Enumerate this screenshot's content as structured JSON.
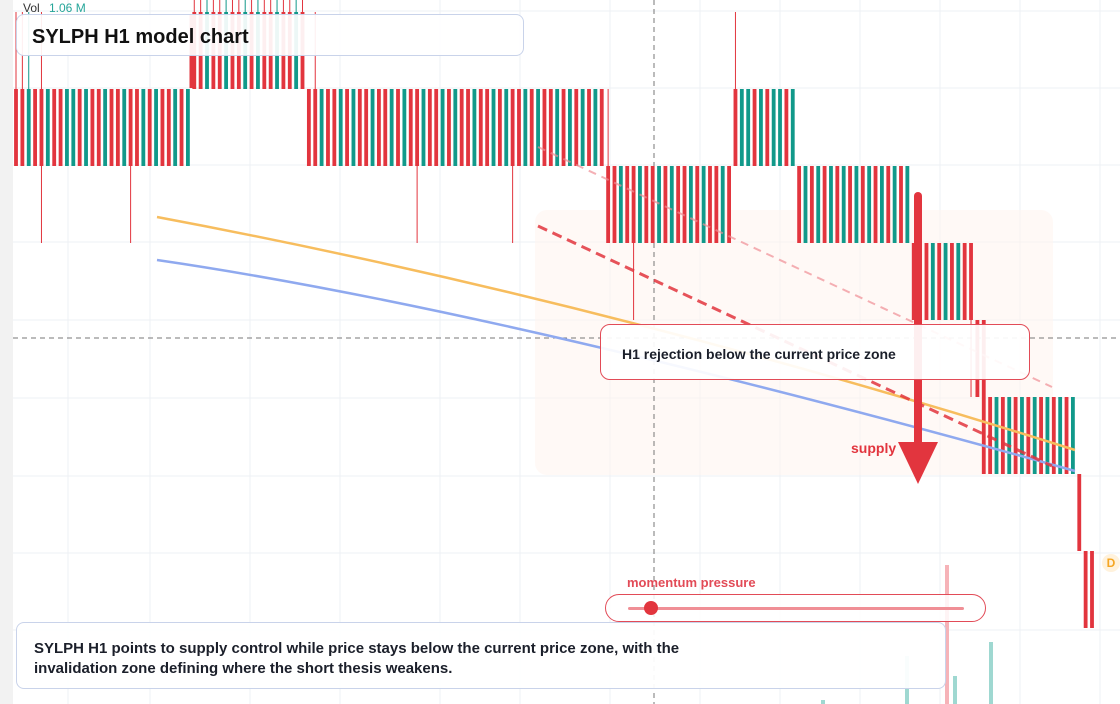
{
  "header": {
    "title": "SYLPH H1 model chart",
    "vol_label": "Vol",
    "vol_value": "1.06 M"
  },
  "annotations": {
    "callout": "H1 rejection below the current price zone",
    "supply_label": "supply",
    "momentum_label": "momentum pressure",
    "summary": "SYLPH H1 points to supply control while price stays below the current price zone, with the invalidation zone defining where the short thesis weakens.",
    "badge": "D"
  },
  "colors": {
    "bull": "#11998a",
    "bear": "#e2353e",
    "ma_fast": "#f7bd5e",
    "ma_slow": "#8fa9ef",
    "trend": "#e2353e"
  },
  "momentum": {
    "level": 0.05
  },
  "chart_data": {
    "type": "candlestick",
    "title": "SYLPH H1 model chart",
    "candles": [
      {
        "o": 2,
        "c": 1,
        "h": 3,
        "l": 1
      },
      {
        "o": 2,
        "c": 1,
        "h": 3,
        "l": 1
      },
      {
        "o": 1,
        "c": 2,
        "h": 3,
        "l": 1
      },
      {
        "o": 2,
        "c": 1,
        "h": 2,
        "l": 1
      },
      {
        "o": 2,
        "c": 1,
        "h": 3,
        "l": 0
      },
      {
        "o": 1,
        "c": 2,
        "h": 2,
        "l": 1
      },
      {
        "o": 2,
        "c": 1,
        "h": 2,
        "l": 1
      },
      {
        "o": 2,
        "c": 1,
        "h": 2,
        "l": 1
      },
      {
        "o": 1,
        "c": 2,
        "h": 2,
        "l": 1
      },
      {
        "o": 1,
        "c": 2,
        "h": 2,
        "l": 1
      },
      {
        "o": 2,
        "c": 1,
        "h": 2,
        "l": 1
      },
      {
        "o": 1,
        "c": 2,
        "h": 2,
        "l": 1
      },
      {
        "o": 2,
        "c": 1,
        "h": 2,
        "l": 1
      },
      {
        "o": 2,
        "c": 1,
        "h": 2,
        "l": 1
      },
      {
        "o": 1,
        "c": 2,
        "h": 2,
        "l": 1
      },
      {
        "o": 2,
        "c": 1,
        "h": 2,
        "l": 1
      },
      {
        "o": 2,
        "c": 1,
        "h": 2,
        "l": 1
      },
      {
        "o": 1,
        "c": 2,
        "h": 2,
        "l": 1
      },
      {
        "o": 2,
        "c": 1,
        "h": 2,
        "l": 0
      },
      {
        "o": 2,
        "c": 1,
        "h": 2,
        "l": 1
      },
      {
        "o": 1,
        "c": 2,
        "h": 2,
        "l": 1
      },
      {
        "o": 2,
        "c": 1,
        "h": 2,
        "l": 1
      },
      {
        "o": 1,
        "c": 2,
        "h": 2,
        "l": 1
      },
      {
        "o": 2,
        "c": 1,
        "h": 2,
        "l": 1
      },
      {
        "o": 2,
        "c": 1,
        "h": 2,
        "l": 1
      },
      {
        "o": 1,
        "c": 2,
        "h": 2,
        "l": 1
      },
      {
        "o": 2,
        "c": 1,
        "h": 2,
        "l": 1
      },
      {
        "o": 1,
        "c": 2,
        "h": 2,
        "l": 1
      },
      {
        "o": 3,
        "c": 2,
        "h": 4,
        "l": 2
      },
      {
        "o": 3,
        "c": 2,
        "h": 4,
        "l": 2
      },
      {
        "o": 2,
        "c": 3,
        "h": 4,
        "l": 2
      },
      {
        "o": 3,
        "c": 2,
        "h": 4,
        "l": 2
      },
      {
        "o": 3,
        "c": 2,
        "h": 4,
        "l": 2
      },
      {
        "o": 2,
        "c": 3,
        "h": 4,
        "l": 2
      },
      {
        "o": 3,
        "c": 2,
        "h": 4,
        "l": 2
      },
      {
        "o": 3,
        "c": 2,
        "h": 4,
        "l": 2
      },
      {
        "o": 2,
        "c": 3,
        "h": 4,
        "l": 2
      },
      {
        "o": 3,
        "c": 2,
        "h": 4,
        "l": 2
      },
      {
        "o": 2,
        "c": 3,
        "h": 4,
        "l": 2
      },
      {
        "o": 3,
        "c": 2,
        "h": 4,
        "l": 2
      },
      {
        "o": 3,
        "c": 2,
        "h": 4,
        "l": 2
      },
      {
        "o": 2,
        "c": 3,
        "h": 4,
        "l": 2
      },
      {
        "o": 3,
        "c": 2,
        "h": 4,
        "l": 2
      },
      {
        "o": 3,
        "c": 2,
        "h": 4,
        "l": 2
      },
      {
        "o": 2,
        "c": 3,
        "h": 4,
        "l": 2
      },
      {
        "o": 3,
        "c": 2,
        "h": 4,
        "l": 2
      },
      {
        "o": 2,
        "c": 1,
        "h": 2,
        "l": 1
      },
      {
        "o": 2,
        "c": 1,
        "h": 3,
        "l": 1
      },
      {
        "o": 1,
        "c": 2,
        "h": 2,
        "l": 1
      },
      {
        "o": 2,
        "c": 1,
        "h": 2,
        "l": 1
      },
      {
        "o": 2,
        "c": 1,
        "h": 2,
        "l": 1
      },
      {
        "o": 1,
        "c": 2,
        "h": 2,
        "l": 1
      },
      {
        "o": 2,
        "c": 1,
        "h": 2,
        "l": 1
      },
      {
        "o": 1,
        "c": 2,
        "h": 2,
        "l": 1
      },
      {
        "o": 2,
        "c": 1,
        "h": 2,
        "l": 1
      },
      {
        "o": 2,
        "c": 1,
        "h": 2,
        "l": 1
      },
      {
        "o": 1,
        "c": 2,
        "h": 2,
        "l": 1
      },
      {
        "o": 2,
        "c": 1,
        "h": 2,
        "l": 1
      },
      {
        "o": 2,
        "c": 1,
        "h": 2,
        "l": 1
      },
      {
        "o": 1,
        "c": 2,
        "h": 2,
        "l": 1
      },
      {
        "o": 2,
        "c": 1,
        "h": 2,
        "l": 1
      },
      {
        "o": 1,
        "c": 2,
        "h": 2,
        "l": 1
      },
      {
        "o": 2,
        "c": 1,
        "h": 2,
        "l": 1
      },
      {
        "o": 2,
        "c": 1,
        "h": 2,
        "l": 0
      },
      {
        "o": 1,
        "c": 2,
        "h": 2,
        "l": 1
      },
      {
        "o": 2,
        "c": 1,
        "h": 2,
        "l": 1
      },
      {
        "o": 2,
        "c": 1,
        "h": 2,
        "l": 1
      },
      {
        "o": 1,
        "c": 2,
        "h": 2,
        "l": 1
      },
      {
        "o": 2,
        "c": 1,
        "h": 2,
        "l": 1
      },
      {
        "o": 1,
        "c": 2,
        "h": 2,
        "l": 1
      },
      {
        "o": 2,
        "c": 1,
        "h": 2,
        "l": 1
      },
      {
        "o": 2,
        "c": 1,
        "h": 2,
        "l": 1
      },
      {
        "o": 1,
        "c": 2,
        "h": 2,
        "l": 1
      },
      {
        "o": 2,
        "c": 1,
        "h": 2,
        "l": 1
      },
      {
        "o": 2,
        "c": 1,
        "h": 2,
        "l": 1
      },
      {
        "o": 1,
        "c": 2,
        "h": 2,
        "l": 1
      },
      {
        "o": 2,
        "c": 1,
        "h": 2,
        "l": 1
      },
      {
        "o": 1,
        "c": 2,
        "h": 2,
        "l": 1
      },
      {
        "o": 2,
        "c": 1,
        "h": 2,
        "l": 0
      },
      {
        "o": 2,
        "c": 1,
        "h": 2,
        "l": 1
      },
      {
        "o": 1,
        "c": 2,
        "h": 2,
        "l": 1
      },
      {
        "o": 2,
        "c": 1,
        "h": 2,
        "l": 1
      },
      {
        "o": 1,
        "c": 2,
        "h": 2,
        "l": 1
      },
      {
        "o": 2,
        "c": 1,
        "h": 2,
        "l": 1
      },
      {
        "o": 2,
        "c": 1,
        "h": 2,
        "l": 1
      },
      {
        "o": 1,
        "c": 2,
        "h": 2,
        "l": 1
      },
      {
        "o": 2,
        "c": 1,
        "h": 2,
        "l": 1
      },
      {
        "o": 1,
        "c": 2,
        "h": 2,
        "l": 1
      },
      {
        "o": 2,
        "c": 1,
        "h": 2,
        "l": 1
      },
      {
        "o": 1,
        "c": 2,
        "h": 2,
        "l": 1
      },
      {
        "o": 2,
        "c": 1,
        "h": 2,
        "l": 1
      },
      {
        "o": 1,
        "c": 2,
        "h": 2,
        "l": 1
      },
      {
        "o": 2,
        "c": 1,
        "h": 2,
        "l": 1
      },
      {
        "o": 1,
        "c": 0,
        "h": 2,
        "l": 0
      },
      {
        "o": 1,
        "c": 0,
        "h": 1,
        "l": 0
      },
      {
        "o": 0,
        "c": 1,
        "h": 1,
        "l": 0
      },
      {
        "o": 1,
        "c": 0,
        "h": 1,
        "l": 0
      },
      {
        "o": 1,
        "c": 0,
        "h": 1,
        "l": -1
      },
      {
        "o": 0,
        "c": 1,
        "h": 1,
        "l": 0
      },
      {
        "o": 1,
        "c": 0,
        "h": 1,
        "l": 0
      },
      {
        "o": 1,
        "c": 0,
        "h": 1,
        "l": 0
      },
      {
        "o": 0,
        "c": 1,
        "h": 1,
        "l": 0
      },
      {
        "o": 1,
        "c": 0,
        "h": 1,
        "l": 0
      },
      {
        "o": 0,
        "c": 1,
        "h": 1,
        "l": 0
      },
      {
        "o": 1,
        "c": 0,
        "h": 1,
        "l": 0
      },
      {
        "o": 1,
        "c": 0,
        "h": 1,
        "l": 0
      },
      {
        "o": 0,
        "c": 1,
        "h": 1,
        "l": 0
      },
      {
        "o": 1,
        "c": 0,
        "h": 1,
        "l": 0
      },
      {
        "o": 0,
        "c": 1,
        "h": 1,
        "l": 0
      },
      {
        "o": 1,
        "c": 0,
        "h": 1,
        "l": 0
      },
      {
        "o": 1,
        "c": 0,
        "h": 1,
        "l": 0
      },
      {
        "o": 0,
        "c": 1,
        "h": 1,
        "l": 0
      },
      {
        "o": 1,
        "c": 0,
        "h": 1,
        "l": 0
      },
      {
        "o": 2,
        "c": 1,
        "h": 3,
        "l": 1
      },
      {
        "o": 1,
        "c": 2,
        "h": 2,
        "l": 1
      },
      {
        "o": 1,
        "c": 2,
        "h": 2,
        "l": 1
      },
      {
        "o": 2,
        "c": 1,
        "h": 2,
        "l": 1
      },
      {
        "o": 1,
        "c": 2,
        "h": 2,
        "l": 1
      },
      {
        "o": 2,
        "c": 1,
        "h": 2,
        "l": 1
      },
      {
        "o": 1,
        "c": 2,
        "h": 2,
        "l": 1
      },
      {
        "o": 1,
        "c": 2,
        "h": 2,
        "l": 1
      },
      {
        "o": 2,
        "c": 1,
        "h": 2,
        "l": 1
      },
      {
        "o": 1,
        "c": 2,
        "h": 2,
        "l": 1
      },
      {
        "o": 1,
        "c": 0,
        "h": 1,
        "l": 0
      },
      {
        "o": 0,
        "c": 1,
        "h": 1,
        "l": 0
      },
      {
        "o": 1,
        "c": 0,
        "h": 1,
        "l": 0
      },
      {
        "o": 0,
        "c": 1,
        "h": 1,
        "l": 0
      },
      {
        "o": 1,
        "c": 0,
        "h": 1,
        "l": 0
      },
      {
        "o": 0,
        "c": 1,
        "h": 1,
        "l": 0
      },
      {
        "o": 1,
        "c": 0,
        "h": 1,
        "l": 0
      },
      {
        "o": 0,
        "c": 1,
        "h": 1,
        "l": 0
      },
      {
        "o": 1,
        "c": 0,
        "h": 1,
        "l": 0
      },
      {
        "o": 0,
        "c": 1,
        "h": 1,
        "l": 0
      },
      {
        "o": 1,
        "c": 0,
        "h": 1,
        "l": 0
      },
      {
        "o": 0,
        "c": 1,
        "h": 1,
        "l": 0
      },
      {
        "o": 1,
        "c": 0,
        "h": 1,
        "l": 0
      },
      {
        "o": 0,
        "c": 1,
        "h": 1,
        "l": 0
      },
      {
        "o": 1,
        "c": 0,
        "h": 1,
        "l": 0
      },
      {
        "o": 0,
        "c": 1,
        "h": 1,
        "l": 0
      },
      {
        "o": 1,
        "c": 0,
        "h": 1,
        "l": 0
      },
      {
        "o": 0,
        "c": 1,
        "h": 1,
        "l": 0
      },
      {
        "o": 0,
        "c": -1,
        "h": 0,
        "l": -1
      },
      {
        "o": -1,
        "c": 0,
        "h": 0,
        "l": -1
      },
      {
        "o": 0,
        "c": -1,
        "h": 0,
        "l": -1
      },
      {
        "o": -1,
        "c": 0,
        "h": 0,
        "l": -1
      },
      {
        "o": 0,
        "c": -1,
        "h": 0,
        "l": -1
      },
      {
        "o": -1,
        "c": 0,
        "h": 0,
        "l": -1
      },
      {
        "o": 0,
        "c": -1,
        "h": 0,
        "l": -1
      },
      {
        "o": -1,
        "c": 0,
        "h": 0,
        "l": -1
      },
      {
        "o": 0,
        "c": -1,
        "h": 0,
        "l": -1
      },
      {
        "o": 0,
        "c": -1,
        "h": 0,
        "l": -2
      },
      {
        "o": -1,
        "c": -2,
        "h": -1,
        "l": -2
      },
      {
        "o": -1,
        "c": -3,
        "h": -1,
        "l": -3
      },
      {
        "o": -2,
        "c": -3,
        "h": -2,
        "l": -3
      },
      {
        "o": -3,
        "c": -2,
        "h": -2,
        "l": -3
      },
      {
        "o": -2,
        "c": -3,
        "h": -2,
        "l": -3
      },
      {
        "o": -3,
        "c": -2,
        "h": -2,
        "l": -3
      },
      {
        "o": -2,
        "c": -3,
        "h": -2,
        "l": -3
      },
      {
        "o": -3,
        "c": -2,
        "h": -2,
        "l": -3
      },
      {
        "o": -2,
        "c": -3,
        "h": -2,
        "l": -3
      },
      {
        "o": -3,
        "c": -2,
        "h": -2,
        "l": -3
      },
      {
        "o": -2,
        "c": -3,
        "h": -2,
        "l": -3
      },
      {
        "o": -3,
        "c": -2,
        "h": -2,
        "l": -3
      },
      {
        "o": -2,
        "c": -3,
        "h": -2,
        "l": -3
      },
      {
        "o": -3,
        "c": -2,
        "h": -2,
        "l": -3
      },
      {
        "o": -2,
        "c": -3,
        "h": -2,
        "l": -3
      },
      {
        "o": -3,
        "c": -2,
        "h": -2,
        "l": -3
      },
      {
        "o": -3,
        "c": -4,
        "h": -3,
        "l": -4
      },
      {
        "o": -4,
        "c": -5,
        "h": -4,
        "l": -5
      },
      {
        "o": -4,
        "c": -5,
        "h": -4,
        "l": -5
      }
    ],
    "overlays": {
      "ma_fast": [
        [
          0,
          1.6
        ],
        [
          0.35,
          0.85
        ],
        [
          0.7,
          0.15
        ],
        [
          1,
          -0.5
        ]
      ],
      "ma_slow": [
        [
          0,
          1.1
        ],
        [
          0.35,
          0.2
        ],
        [
          0.7,
          -0.6
        ],
        [
          1,
          -1.0
        ]
      ]
    },
    "volume": [
      0,
      0,
      0,
      0,
      0,
      0,
      0,
      0,
      0,
      0,
      0,
      0,
      0,
      0,
      0,
      0,
      0,
      0,
      0,
      0,
      0,
      0,
      0,
      0,
      0,
      0,
      0,
      0,
      0,
      0,
      0,
      0,
      0,
      0,
      0,
      0,
      0,
      0,
      0,
      0,
      0,
      0,
      0,
      0,
      0,
      0,
      0,
      0,
      0,
      0,
      0,
      0,
      0,
      0,
      0,
      0,
      0,
      0,
      0,
      0,
      0,
      0,
      0,
      0,
      0,
      0,
      0,
      0,
      0,
      0,
      0,
      0,
      0,
      0,
      0,
      0,
      0,
      0,
      0,
      0,
      0,
      0,
      0,
      0,
      0,
      0,
      0,
      0,
      0,
      0,
      0,
      0,
      0,
      0,
      0,
      0,
      0,
      0,
      0,
      0,
      0,
      0,
      0,
      0,
      0,
      0,
      0,
      0,
      0,
      0,
      0,
      0,
      0,
      0,
      0,
      0,
      0,
      0,
      0,
      0,
      0,
      0,
      0,
      0,
      0,
      0,
      0,
      0,
      0,
      0,
      0,
      0,
      0,
      0,
      0,
      0,
      0,
      0,
      0,
      0,
      0,
      0,
      0,
      0,
      0,
      0,
      0,
      0,
      0,
      0,
      0,
      0,
      0,
      0,
      0,
      0,
      0,
      0,
      0,
      0,
      0,
      0,
      0,
      0,
      0,
      0,
      0,
      0,
      0,
      0,
      0,
      0,
      0,
      0,
      0,
      0,
      0,
      0,
      0,
      0,
      0,
      0,
      0,
      0,
      0,
      0,
      0,
      0,
      0,
      0,
      0,
      0,
      0,
      0,
      0,
      0,
      0,
      0,
      0,
      0,
      0,
      0,
      0,
      0,
      0,
      0,
      0,
      0,
      0,
      0,
      0,
      0,
      0,
      0,
      0,
      0,
      0,
      0,
      0,
      0,
      0,
      0,
      0,
      0,
      0,
      0,
      0,
      0,
      0,
      0,
      0,
      0,
      0,
      0,
      0,
      0,
      0,
      0,
      0,
      0,
      0.3,
      0,
      0,
      0,
      0,
      0,
      0,
      0,
      0,
      0,
      0,
      0,
      0,
      0,
      0,
      0,
      0,
      0,
      0,
      0,
      0,
      0,
      0,
      0,
      0,
      0,
      0,
      0,
      0,
      0,
      0,
      0,
      0,
      0,
      0,
      0,
      0,
      0,
      0,
      0,
      0,
      0,
      0,
      0,
      0,
      0,
      0,
      0,
      0,
      0,
      0,
      0,
      0,
      0,
      0,
      0,
      0,
      0,
      0,
      0,
      0.55,
      0,
      0,
      0,
      0,
      0,
      0,
      0,
      0,
      0.3,
      0.75,
      0,
      0,
      0,
      0,
      0,
      0,
      0,
      0,
      0,
      0,
      0,
      0,
      0,
      0,
      0,
      0,
      0,
      0,
      0,
      0.7,
      0,
      0,
      0,
      0,
      0,
      0,
      0,
      0,
      0,
      0,
      0,
      0,
      0,
      0,
      0,
      0,
      0,
      0,
      0,
      0,
      0,
      0,
      0,
      0,
      0,
      0,
      0,
      0,
      0
    ],
    "grid": true
  }
}
